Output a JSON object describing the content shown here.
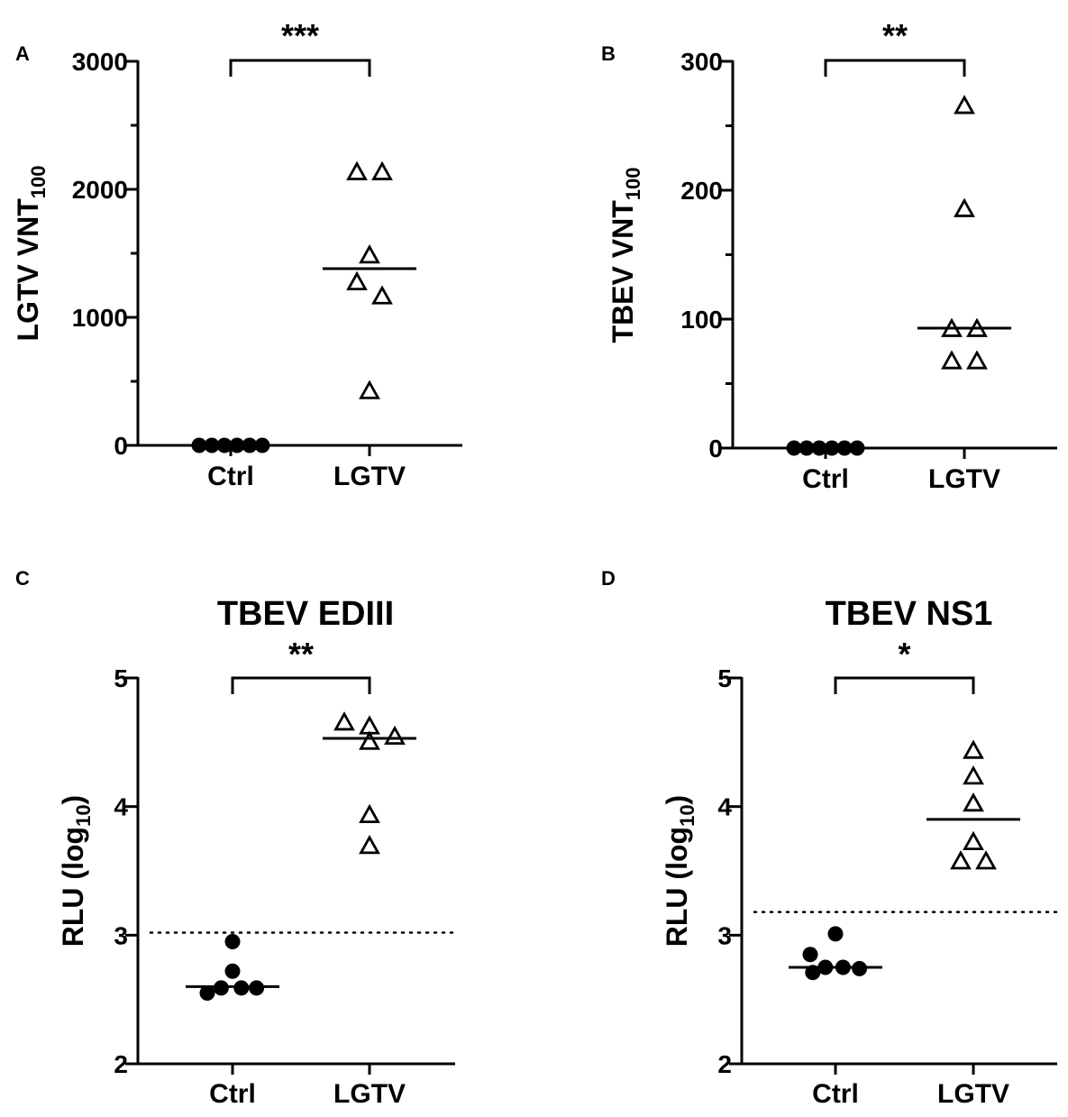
{
  "figure": {
    "panels": [
      "A",
      "B",
      "C",
      "D"
    ]
  },
  "chart_data": [
    {
      "panel": "A",
      "type": "scatter",
      "title": "",
      "xlabel": "",
      "ylabel": "LGTV VNT",
      "ylabel_sub": "100",
      "categories": [
        "Ctrl",
        "LGTV"
      ],
      "ylim": [
        0,
        3000
      ],
      "yticks": [
        0,
        1000,
        2000,
        3000
      ],
      "yticks_minor": [
        500,
        1500,
        2500
      ],
      "series": [
        {
          "name": "Ctrl",
          "marker": "circle",
          "values": [
            0,
            0,
            0,
            0,
            0,
            0
          ],
          "jitter": [
            -2.5,
            -1.5,
            -0.5,
            0.5,
            1.5,
            2.5
          ]
        },
        {
          "name": "LGTV",
          "marker": "triangle",
          "values": [
            2130,
            2130,
            1480,
            1270,
            1160,
            420
          ],
          "jitter": [
            -1,
            1,
            0,
            -1,
            1,
            0
          ]
        }
      ],
      "medians": [
        null,
        1380
      ],
      "significance": "***",
      "threshold": null
    },
    {
      "panel": "B",
      "type": "scatter",
      "title": "",
      "xlabel": "",
      "ylabel": "TBEV VNT",
      "ylabel_sub": "100",
      "categories": [
        "Ctrl",
        "LGTV"
      ],
      "ylim": [
        0,
        300
      ],
      "yticks": [
        0,
        100,
        200,
        300
      ],
      "yticks_minor": [
        50,
        150,
        250
      ],
      "series": [
        {
          "name": "Ctrl",
          "marker": "circle",
          "values": [
            0,
            0,
            0,
            0,
            0,
            0
          ],
          "jitter": [
            -2.5,
            -1.5,
            -0.5,
            0.5,
            1.5,
            2.5
          ]
        },
        {
          "name": "LGTV",
          "marker": "triangle",
          "values": [
            265,
            185,
            92,
            92,
            67,
            67
          ],
          "jitter": [
            0,
            0,
            -1,
            1,
            -1,
            1
          ]
        }
      ],
      "medians": [
        null,
        93
      ],
      "significance": "**",
      "threshold": null
    },
    {
      "panel": "C",
      "type": "scatter",
      "title": "TBEV EDIII",
      "xlabel": "",
      "ylabel": "RLU (log",
      "ylabel_sub": "10",
      "ylabel_suffix": ")",
      "categories": [
        "Ctrl",
        "LGTV"
      ],
      "ylim": [
        2,
        5
      ],
      "yticks": [
        2,
        3,
        4,
        5
      ],
      "yticks_minor": [],
      "series": [
        {
          "name": "Ctrl",
          "marker": "circle",
          "values": [
            2.95,
            2.72,
            2.59,
            2.59,
            2.59,
            2.55
          ],
          "jitter": [
            0,
            0,
            -0.9,
            0.7,
            1.9,
            -2.0
          ]
        },
        {
          "name": "LGTV",
          "marker": "triangle",
          "values": [
            4.65,
            4.62,
            4.54,
            4.5,
            3.93,
            3.69
          ],
          "jitter": [
            -2.0,
            0,
            2.0,
            0,
            0,
            0
          ]
        }
      ],
      "medians": [
        2.6,
        4.53
      ],
      "significance": "**",
      "threshold": 3.02
    },
    {
      "panel": "D",
      "type": "scatter",
      "title": "TBEV NS1",
      "xlabel": "",
      "ylabel": "RLU (log",
      "ylabel_sub": "10",
      "ylabel_suffix": ")",
      "categories": [
        "Ctrl",
        "LGTV"
      ],
      "ylim": [
        2,
        5
      ],
      "yticks": [
        2,
        3,
        4,
        5
      ],
      "yticks_minor": [],
      "series": [
        {
          "name": "Ctrl",
          "marker": "circle",
          "values": [
            3.01,
            2.85,
            2.75,
            2.75,
            2.74,
            2.71
          ],
          "jitter": [
            0,
            -2.0,
            -0.8,
            0.6,
            1.9,
            -1.8
          ]
        },
        {
          "name": "LGTV",
          "marker": "triangle",
          "values": [
            4.43,
            4.23,
            4.02,
            3.72,
            3.57,
            3.57
          ],
          "jitter": [
            0,
            0,
            0,
            0,
            -1,
            1
          ]
        }
      ],
      "medians": [
        2.75,
        3.9
      ],
      "significance": "*",
      "threshold": 3.18
    }
  ]
}
